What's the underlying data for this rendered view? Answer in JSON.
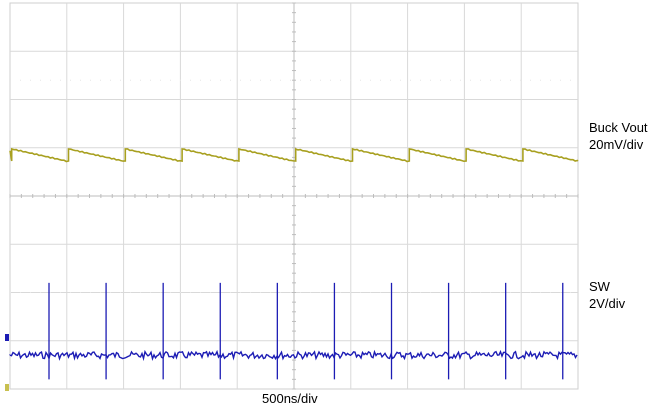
{
  "labels": {
    "ch1_name": "Buck Vout",
    "ch1_scale": "20mV/div",
    "ch2_name": "SW",
    "ch2_scale": "2V/div",
    "timebase": "500ns/div"
  },
  "colors": {
    "grid": "#d9d9d9",
    "center_axis": "#bdbdbd",
    "ch1": "#a8a020",
    "ch2": "#1c1cb4",
    "background": "#ffffff"
  },
  "chart_data": {
    "type": "line",
    "grid": true,
    "divisions": {
      "horizontal": 10,
      "vertical": 8
    },
    "xlabel": "500ns/div",
    "x_per_div": "500ns",
    "series": [
      {
        "name": "Buck Vout",
        "scale": "20mV/div",
        "waveform": "sawtooth",
        "periods_visible": 10,
        "ripple_divisions": 0.25
      },
      {
        "name": "SW",
        "scale": "2V/div",
        "waveform": "spike train",
        "spike_count": 10,
        "spike_height_divisions": 1.5,
        "undershoot_divisions": 0.5
      }
    ]
  }
}
